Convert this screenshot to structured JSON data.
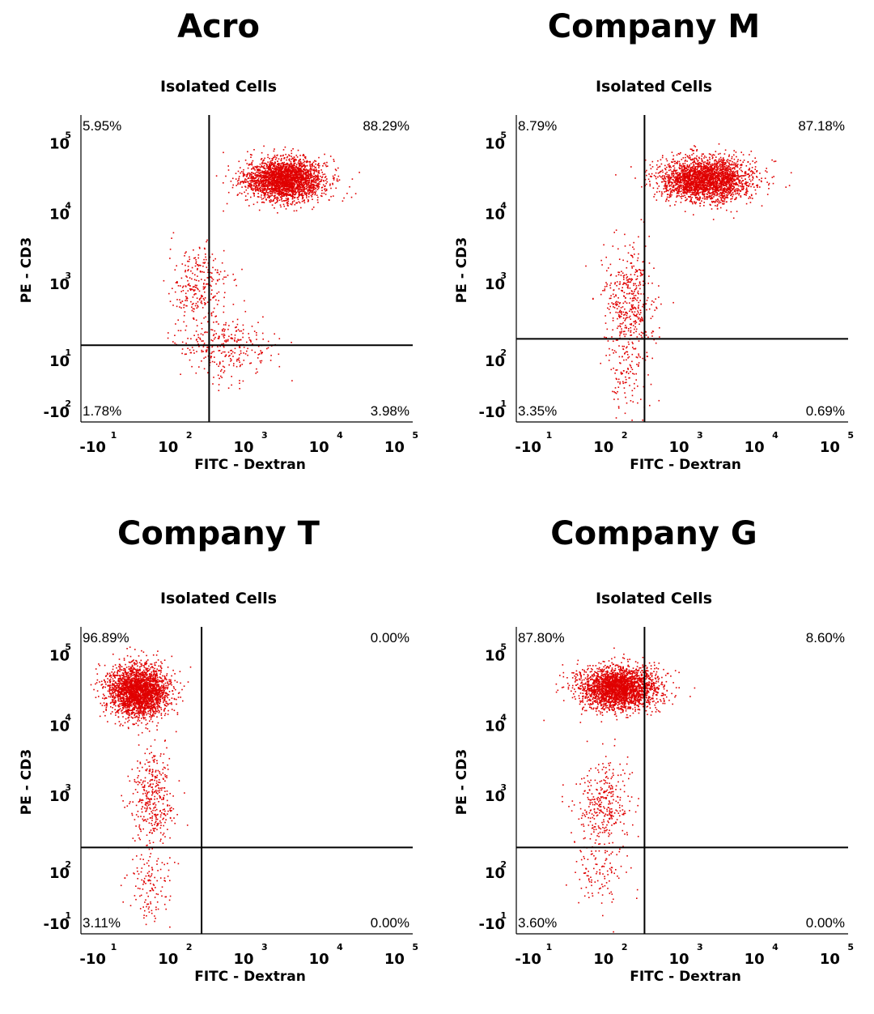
{
  "chart_data": [
    {
      "type": "scatter",
      "title": "Acro",
      "subtitle": "Isolated Cells",
      "xlabel": "FITC - Dextran",
      "ylabel": "PE - CD3",
      "x_ticks": [
        {
          "base": "-10",
          "exp": "1"
        },
        {
          "base": "10",
          "exp": "2"
        },
        {
          "base": "10",
          "exp": "3"
        },
        {
          "base": "10",
          "exp": "4"
        },
        {
          "base": "10",
          "exp": "5"
        }
      ],
      "y_ticks": [
        {
          "base": "-10",
          "exp": "2"
        },
        {
          "base": "10",
          "exp": "1"
        },
        {
          "base": "10",
          "exp": "3"
        },
        {
          "base": "10",
          "exp": "4"
        },
        {
          "base": "10",
          "exp": "5"
        }
      ],
      "quadrants": {
        "upper_left": "5.95%",
        "upper_right": "88.29%",
        "lower_left": "1.78%",
        "lower_right": "3.98%"
      },
      "gate": {
        "x": 2.5,
        "y": 1.6
      },
      "dot_color": "#e00000",
      "populations": [
        {
          "x": 3.5,
          "y": 4.2,
          "sx": 0.26,
          "sy": 0.16,
          "n": 2600
        },
        {
          "x": 2.35,
          "y": 2.55,
          "sx": 0.2,
          "sy": 0.28,
          "n": 260
        },
        {
          "x": 2.7,
          "y": 1.6,
          "sx": 0.32,
          "sy": 0.24,
          "n": 300
        }
      ]
    },
    {
      "type": "scatter",
      "title": "Company M",
      "subtitle": "Isolated Cells",
      "xlabel": "FITC - Dextran",
      "ylabel": "PE - CD3",
      "x_ticks": [
        {
          "base": "-10",
          "exp": "1"
        },
        {
          "base": "10",
          "exp": "2"
        },
        {
          "base": "10",
          "exp": "3"
        },
        {
          "base": "10",
          "exp": "4"
        },
        {
          "base": "10",
          "exp": "5"
        }
      ],
      "y_ticks": [
        {
          "base": "-10",
          "exp": "1"
        },
        {
          "base": "10",
          "exp": "2"
        },
        {
          "base": "10",
          "exp": "3"
        },
        {
          "base": "10",
          "exp": "4"
        },
        {
          "base": "10",
          "exp": "5"
        }
      ],
      "quadrants": {
        "upper_left": "8.79%",
        "upper_right": "87.18%",
        "lower_left": "3.35%",
        "lower_right": "0.69%"
      },
      "gate": {
        "x": 2.5,
        "y": 1.7
      },
      "dot_color": "#e00000",
      "populations": [
        {
          "x": 3.3,
          "y": 4.2,
          "sx": 0.3,
          "sy": 0.17,
          "n": 2600
        },
        {
          "x": 2.3,
          "y": 2.3,
          "sx": 0.17,
          "sy": 0.4,
          "n": 420
        },
        {
          "x": 2.25,
          "y": 1.2,
          "sx": 0.14,
          "sy": 0.3,
          "n": 120
        }
      ]
    },
    {
      "type": "scatter",
      "title": "Company T",
      "subtitle": "Isolated Cells",
      "xlabel": "FITC - Dextran",
      "ylabel": "PE - CD3",
      "x_ticks": [
        {
          "base": "-10",
          "exp": "1"
        },
        {
          "base": "10",
          "exp": "2"
        },
        {
          "base": "10",
          "exp": "3"
        },
        {
          "base": "10",
          "exp": "4"
        },
        {
          "base": "10",
          "exp": "5"
        }
      ],
      "y_ticks": [
        {
          "base": "-10",
          "exp": "1"
        },
        {
          "base": "10",
          "exp": "2"
        },
        {
          "base": "10",
          "exp": "3"
        },
        {
          "base": "10",
          "exp": "4"
        },
        {
          "base": "10",
          "exp": "5"
        }
      ],
      "quadrants": {
        "upper_left": "96.89%",
        "upper_right": "0.00%",
        "lower_left": "3.11%",
        "lower_right": "0.00%"
      },
      "gate": {
        "x": 2.4,
        "y": 1.75
      },
      "dot_color": "#e00000",
      "populations": [
        {
          "x": 1.55,
          "y": 4.2,
          "sx": 0.2,
          "sy": 0.2,
          "n": 2600
        },
        {
          "x": 1.75,
          "y": 2.55,
          "sx": 0.14,
          "sy": 0.35,
          "n": 360
        },
        {
          "x": 1.7,
          "y": 1.15,
          "sx": 0.16,
          "sy": 0.3,
          "n": 130
        }
      ]
    },
    {
      "type": "scatter",
      "title": "Company G",
      "subtitle": "Isolated Cells",
      "xlabel": "FITC - Dextran",
      "ylabel": "PE - CD3",
      "x_ticks": [
        {
          "base": "-10",
          "exp": "1"
        },
        {
          "base": "10",
          "exp": "2"
        },
        {
          "base": "10",
          "exp": "3"
        },
        {
          "base": "10",
          "exp": "4"
        },
        {
          "base": "10",
          "exp": "5"
        }
      ],
      "y_ticks": [
        {
          "base": "-10",
          "exp": "1"
        },
        {
          "base": "10",
          "exp": "2"
        },
        {
          "base": "10",
          "exp": "3"
        },
        {
          "base": "10",
          "exp": "4"
        },
        {
          "base": "10",
          "exp": "5"
        }
      ],
      "quadrants": {
        "upper_left": "87.80%",
        "upper_right": "8.60%",
        "lower_left": "3.60%",
        "lower_right": "0.00%"
      },
      "gate": {
        "x": 2.5,
        "y": 1.75
      },
      "dot_color": "#e00000",
      "populations": [
        {
          "x": 2.15,
          "y": 4.25,
          "sx": 0.26,
          "sy": 0.17,
          "n": 2600
        },
        {
          "x": 1.95,
          "y": 2.45,
          "sx": 0.18,
          "sy": 0.35,
          "n": 330
        },
        {
          "x": 1.9,
          "y": 1.3,
          "sx": 0.18,
          "sy": 0.28,
          "n": 110
        }
      ]
    }
  ]
}
